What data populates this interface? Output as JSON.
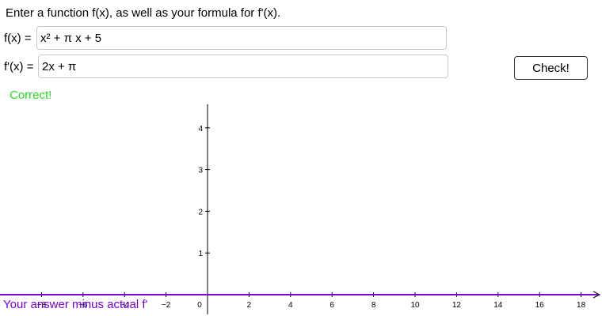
{
  "instruction": "Enter a function f(x), as well as your formula for f'(x).",
  "fx_field": {
    "label": "f(x) =",
    "value": "x² + π x + 5"
  },
  "fprime_field": {
    "label": "f'(x) =",
    "value": "2x + π"
  },
  "check_button": {
    "label": "Check!"
  },
  "status": {
    "text": "Correct!",
    "color": "#22dd22"
  },
  "graph": {
    "caption": "Your answer minus actual f'",
    "caption_color": "#7a00d6",
    "curve_color": "#7a00d6",
    "curve_y": 0,
    "x_range": [
      -10,
      19.2
    ],
    "y_range": [
      -0.5,
      4.6
    ],
    "x_ticks": [
      -8,
      -6,
      -4,
      -2,
      2,
      4,
      6,
      8,
      10,
      12,
      14,
      16,
      18
    ],
    "y_ticks": [
      1,
      2,
      3,
      4
    ],
    "origin_label": "0"
  }
}
